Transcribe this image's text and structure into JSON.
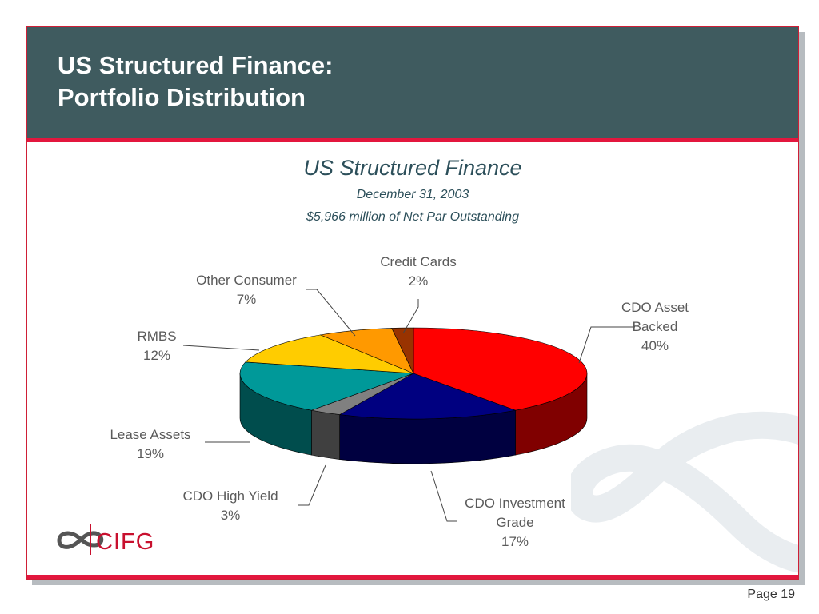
{
  "slide": {
    "title_line1": "US Structured Finance:",
    "title_line2": "Portfolio Distribution",
    "page_number": "Page 19",
    "logo_text": "CIFG"
  },
  "colors": {
    "header_bg": "#3f5b5f",
    "accent_red": "#e3173e",
    "title_text": "#2c4f5a",
    "label_text": "#5a5a5a"
  },
  "chart_data": {
    "type": "pie",
    "three_d": true,
    "title": "US Structured Finance",
    "subtitle_line1": "December 31, 2003",
    "subtitle_line2": "$5,966 million of Net Par Outstanding",
    "legend": "none",
    "slices": [
      {
        "label_lines": [
          "CDO Asset",
          "Backed"
        ],
        "percent_label": "40%",
        "value": 40,
        "color": "#ff0000"
      },
      {
        "label_lines": [
          "CDO Investment",
          "Grade"
        ],
        "percent_label": "17%",
        "value": 17,
        "color": "#000080"
      },
      {
        "label_lines": [
          "CDO High Yield"
        ],
        "percent_label": "3%",
        "value": 3,
        "color": "#808080"
      },
      {
        "label_lines": [
          "Lease Assets"
        ],
        "percent_label": "19%",
        "value": 19,
        "color": "#009999"
      },
      {
        "label_lines": [
          "RMBS"
        ],
        "percent_label": "12%",
        "value": 12,
        "color": "#ffcc00"
      },
      {
        "label_lines": [
          "Other Consumer"
        ],
        "percent_label": "7%",
        "value": 7,
        "color": "#ff9900"
      },
      {
        "label_lines": [
          "Credit Cards"
        ],
        "percent_label": "2%",
        "value": 2,
        "color": "#993300"
      }
    ]
  }
}
